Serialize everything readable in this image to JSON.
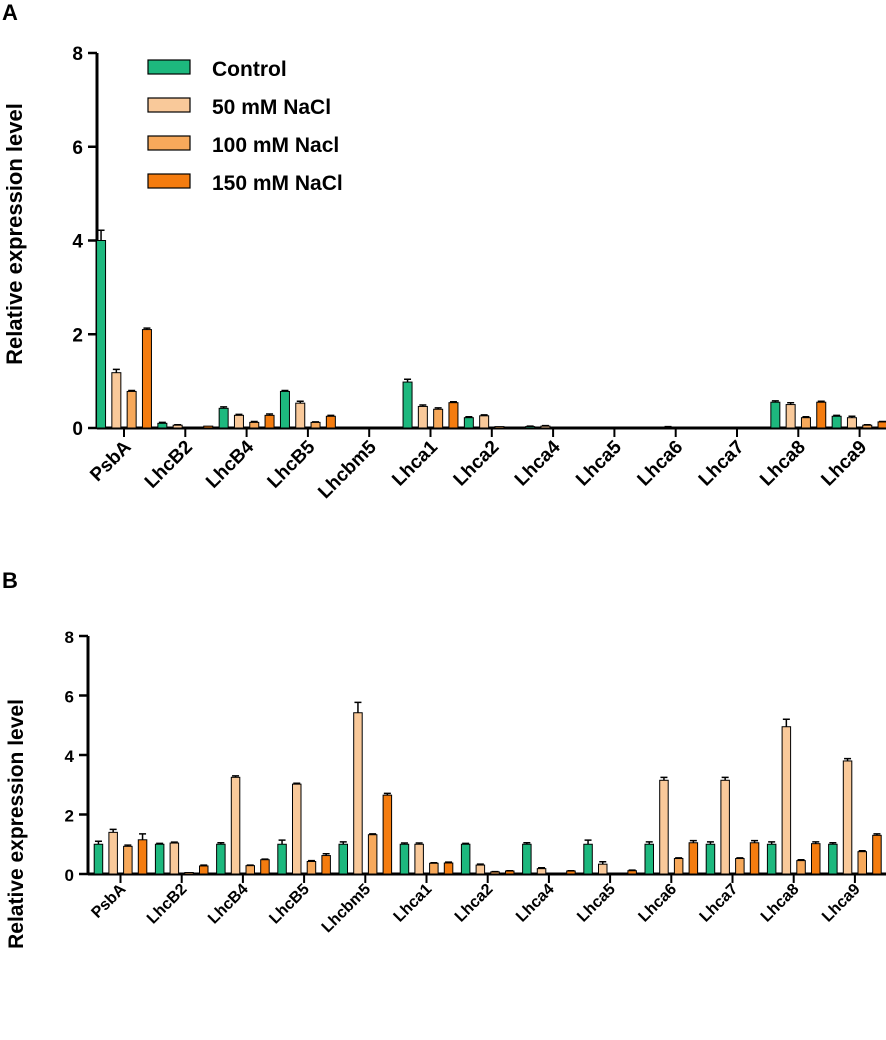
{
  "series_styles": [
    {
      "name": "Control",
      "color": "#1db87e"
    },
    {
      "name": "50 mM NaCl",
      "color": "#f9c99a"
    },
    {
      "name": "100 mM Nacl",
      "color": "#f7a95b"
    },
    {
      "name": "150 mM NaCl",
      "color": "#f47c0f"
    }
  ],
  "chart_data": [
    {
      "type": "bar",
      "panel": "A",
      "title": "",
      "xlabel": "",
      "ylabel": "Relative expression level",
      "ylim": [
        0,
        8
      ],
      "yticks": [
        0,
        2,
        4,
        6,
        8
      ],
      "legend": "top-left",
      "categories": [
        "PsbA",
        "LhcB2",
        "LhcB4",
        "LhcB5",
        "Lhcbm5",
        "Lhca1",
        "Lhca2",
        "Lhca4",
        "Lhca5",
        "Lhca6",
        "Lhca7",
        "Lhca8",
        "Lhca9"
      ],
      "series": [
        {
          "name": "Control",
          "values": [
            4.0,
            0.1,
            0.42,
            0.78,
            0.0,
            0.98,
            0.22,
            0.03,
            0.01,
            0.0,
            0.0,
            0.55,
            0.25
          ],
          "errors": [
            0.22,
            0.02,
            0.03,
            0.02,
            0.0,
            0.06,
            0.02,
            0.01,
            0.0,
            0.0,
            0.0,
            0.03,
            0.02
          ]
        },
        {
          "name": "50 mM NaCl",
          "values": [
            1.18,
            0.06,
            0.27,
            0.53,
            0.0,
            0.46,
            0.26,
            0.04,
            0.01,
            0.02,
            0.0,
            0.5,
            0.22
          ],
          "errors": [
            0.07,
            0.01,
            0.02,
            0.04,
            0.0,
            0.03,
            0.02,
            0.01,
            0.0,
            0.01,
            0.0,
            0.04,
            0.03
          ]
        },
        {
          "name": "100 mM Nacl",
          "values": [
            0.78,
            0.01,
            0.12,
            0.12,
            0.0,
            0.4,
            0.03,
            0.02,
            0.0,
            0.0,
            0.0,
            0.22,
            0.06
          ],
          "errors": [
            0.02,
            0.0,
            0.02,
            0.01,
            0.0,
            0.03,
            0.0,
            0.0,
            0.0,
            0.0,
            0.0,
            0.02,
            0.01
          ]
        },
        {
          "name": "150 mM NaCl",
          "values": [
            2.1,
            0.04,
            0.27,
            0.25,
            0.0,
            0.54,
            0.02,
            0.01,
            0.0,
            0.0,
            0.0,
            0.55,
            0.13
          ],
          "errors": [
            0.03,
            0.0,
            0.03,
            0.02,
            0.0,
            0.02,
            0.0,
            0.0,
            0.0,
            0.0,
            0.0,
            0.02,
            0.01
          ]
        }
      ]
    },
    {
      "type": "bar",
      "panel": "B",
      "title": "",
      "xlabel": "",
      "ylabel": "Relative expression level",
      "ylim": [
        0,
        8
      ],
      "yticks": [
        0,
        2,
        4,
        6,
        8
      ],
      "legend": "none",
      "categories": [
        "PsbA",
        "LhcB2",
        "LhcB4",
        "LhcB5",
        "Lhcbm5",
        "Lhca1",
        "Lhca2",
        "Lhca4",
        "Lhca5",
        "Lhca6",
        "Lhca7",
        "Lhca8",
        "Lhca9"
      ],
      "series": [
        {
          "name": "Control",
          "values": [
            1.0,
            1.0,
            1.0,
            1.0,
            1.0,
            1.0,
            1.0,
            1.0,
            1.0,
            1.0,
            1.0,
            1.0,
            1.0
          ],
          "errors": [
            0.1,
            0.03,
            0.05,
            0.14,
            0.08,
            0.04,
            0.03,
            0.05,
            0.14,
            0.08,
            0.08,
            0.08,
            0.05
          ]
        },
        {
          "name": "50 mM NaCl",
          "values": [
            1.4,
            1.04,
            3.25,
            3.02,
            5.42,
            1.0,
            0.3,
            0.18,
            0.33,
            3.15,
            3.15,
            4.95,
            3.8
          ],
          "errors": [
            0.1,
            0.03,
            0.05,
            0.03,
            0.35,
            0.04,
            0.03,
            0.03,
            0.08,
            0.1,
            0.1,
            0.25,
            0.08
          ]
        },
        {
          "name": "100 mM Nacl",
          "values": [
            0.93,
            0.05,
            0.28,
            0.42,
            1.32,
            0.36,
            0.07,
            0.03,
            0.03,
            0.52,
            0.52,
            0.45,
            0.75
          ],
          "errors": [
            0.04,
            0.0,
            0.02,
            0.03,
            0.03,
            0.02,
            0.01,
            0.0,
            0.0,
            0.02,
            0.02,
            0.03,
            0.03
          ]
        },
        {
          "name": "150 mM NaCl",
          "values": [
            1.15,
            0.27,
            0.48,
            0.62,
            2.65,
            0.37,
            0.1,
            0.1,
            0.11,
            1.05,
            1.05,
            1.02,
            1.3
          ],
          "errors": [
            0.2,
            0.03,
            0.02,
            0.06,
            0.06,
            0.03,
            0.01,
            0.01,
            0.02,
            0.07,
            0.07,
            0.06,
            0.05
          ]
        }
      ]
    }
  ]
}
